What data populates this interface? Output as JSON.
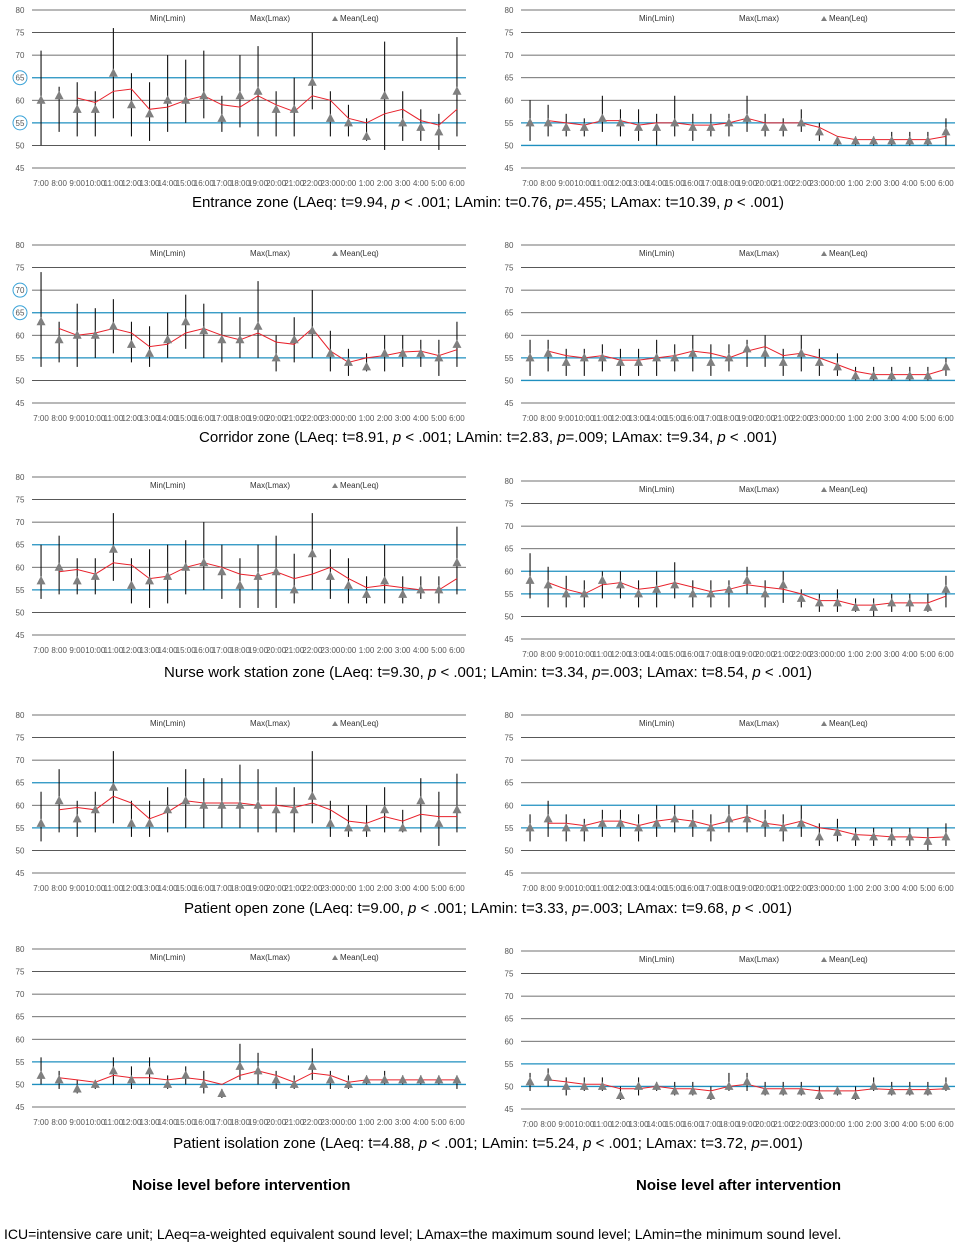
{
  "x_labels": [
    "7:00",
    "8:00",
    "9:00",
    "10:00",
    "11:00",
    "12:00",
    "13:00",
    "14:00",
    "15:00",
    "16:00",
    "17:00",
    "18:00",
    "19:00",
    "20:00",
    "21:00",
    "22:00",
    "23:00",
    "0:00",
    "1:00",
    "2:00",
    "3:00",
    "4:00",
    "5:00",
    "6:00"
  ],
  "legend": {
    "min": "Min(Lmin)",
    "max": "Max(Lmax)",
    "mean": "Mean(Leq)"
  },
  "colors": {
    "ref_line": "#1f8fbf",
    "trend": "#e8212b",
    "marker": "#7f7f7f",
    "grid": "#404040"
  },
  "captions": [
    {
      "zone": "Entrance zone",
      "t1": " (LAeq: t=9.94, ",
      "p1": "p",
      "r1": " < .001; LAmin: t=0.76, ",
      "p2": "p",
      "r2": "=.455; LAmax: t=10.39, ",
      "p3": "p",
      "r3": " < .001)"
    },
    {
      "zone": "Corridor zone",
      "t1": " (LAeq: t=8.91, ",
      "p1": "p",
      "r1": " < .001; LAmin: t=2.83, ",
      "p2": "p",
      "r2": "=.009; LAmax: t=9.34, ",
      "p3": "p",
      "r3": " < .001)"
    },
    {
      "zone": "Nurse work station zone",
      "t1": " (LAeq: t=9.30, ",
      "p1": "p",
      "r1": " < .001; LAmin: t=3.34, ",
      "p2": "p",
      "r2": "=.003; LAmax: t=8.54, ",
      "p3": "p",
      "r3": " < .001)"
    },
    {
      "zone": "Patient open zone",
      "t1": " (LAeq: t=9.00, ",
      "p1": "p",
      "r1": " < .001; LAmin: t=3.33, ",
      "p2": "p",
      "r2": "=.003; LAmax: t=9.68, ",
      "p3": "p",
      "r3": " < .001)"
    },
    {
      "zone": "Patient isolation zone",
      "t1": " (LAeq: t=4.88, ",
      "p1": "p",
      "r1": " < .001; LAmin: t=5.24, ",
      "p2": "p",
      "r2": " < .001; LAmax: t=3.72, ",
      "p3": "p",
      "r3": "=.001)"
    }
  ],
  "before_label": "Noise level before intervention",
  "after_label": "Noise level after intervention",
  "footnote": "ICU=intensive care unit; LAeq=a-weighted equivalent sound level; LAmax=the maximum sound level; LAmin=the minimum sound level.",
  "chart_data": [
    {
      "type": "line",
      "zone": "Entrance zone",
      "period": "before",
      "ylim": [
        45,
        80
      ],
      "yticks": [
        45,
        50,
        55,
        60,
        65,
        70,
        75,
        80
      ],
      "ref_lines": [
        55,
        65
      ],
      "circled_ticks": [
        55,
        65
      ],
      "mean": [
        60,
        61,
        58,
        58,
        66,
        59,
        57,
        60,
        60,
        61,
        56,
        61,
        62,
        58,
        58,
        64,
        56,
        55,
        52,
        61,
        55,
        54,
        53,
        62
      ],
      "min": [
        50,
        53,
        52,
        52,
        56,
        52,
        51,
        53,
        55,
        56,
        53,
        54,
        52,
        52,
        52,
        58,
        52,
        52,
        51,
        49,
        51,
        51,
        49,
        52
      ],
      "max": [
        71,
        63,
        64,
        62,
        76,
        66,
        64,
        70,
        69,
        71,
        61,
        70,
        72,
        62,
        65,
        75,
        62,
        59,
        56,
        73,
        62,
        58,
        57,
        74
      ],
      "trend": [
        null,
        null,
        60.5,
        59.5,
        62,
        62.5,
        58,
        58.5,
        60,
        61,
        59,
        58.5,
        61,
        59,
        57.5,
        61,
        60,
        56,
        55,
        57,
        58,
        55.5,
        54.5,
        58
      ]
    },
    {
      "type": "line",
      "zone": "Entrance zone",
      "period": "after",
      "ylim": [
        45,
        80
      ],
      "yticks": [
        45,
        50,
        55,
        60,
        65,
        70,
        75,
        80
      ],
      "ref_lines": [
        50,
        55
      ],
      "mean": [
        55,
        55,
        54,
        54,
        56,
        55,
        54,
        54,
        55,
        54,
        54,
        55,
        56,
        54,
        54,
        55,
        53,
        51,
        51,
        51,
        51,
        51,
        51,
        53
      ],
      "min": [
        51,
        52,
        52,
        52,
        53,
        52,
        51,
        50,
        52,
        51,
        52,
        52,
        53,
        52,
        52,
        53,
        51,
        50,
        50,
        50,
        50,
        50,
        50,
        50
      ],
      "max": [
        60,
        59,
        57,
        56,
        61,
        58,
        58,
        57,
        61,
        57,
        57,
        57,
        61,
        57,
        56,
        58,
        55,
        52,
        52,
        52,
        53,
        53,
        53,
        56
      ],
      "trend": [
        null,
        55.5,
        55,
        54.5,
        55.5,
        55.5,
        54.5,
        55,
        55,
        54.5,
        54.5,
        55,
        56,
        55,
        55,
        55,
        54,
        52,
        51.3,
        51.3,
        51.3,
        51.3,
        51.3,
        52
      ]
    },
    {
      "type": "line",
      "zone": "Corridor zone",
      "period": "before",
      "ylim": [
        45,
        80
      ],
      "yticks": [
        45,
        50,
        55,
        60,
        65,
        70,
        75,
        80
      ],
      "ref_lines": [
        55,
        65
      ],
      "circled_ticks": [
        65,
        70
      ],
      "mean": [
        63,
        59,
        60,
        60,
        62,
        58,
        56,
        59,
        63,
        61,
        59,
        59,
        62,
        55,
        59,
        61,
        56,
        54,
        53,
        56,
        56,
        56,
        55,
        58
      ],
      "min": [
        53,
        54,
        53,
        55,
        56,
        54,
        53,
        55,
        57,
        55,
        54,
        55,
        55,
        52,
        54,
        55,
        52,
        51,
        52,
        52,
        53,
        53,
        51,
        53
      ],
      "max": [
        74,
        63,
        67,
        66,
        68,
        63,
        62,
        65,
        69,
        67,
        65,
        64,
        72,
        60,
        64,
        70,
        61,
        57,
        56,
        60,
        60,
        59,
        59,
        63
      ],
      "trend": [
        null,
        61.5,
        60,
        60.5,
        61.5,
        60.5,
        57.5,
        58,
        60.5,
        61.5,
        60,
        59,
        60.5,
        58.5,
        58,
        61.5,
        56.5,
        54,
        55,
        55.5,
        56.3,
        56.5,
        55.5,
        56.8
      ]
    },
    {
      "type": "line",
      "zone": "Corridor zone",
      "period": "after",
      "ylim": [
        45,
        80
      ],
      "yticks": [
        45,
        50,
        55,
        60,
        65,
        70,
        75,
        80
      ],
      "ref_lines": [
        50,
        55
      ],
      "mean": [
        55,
        56,
        54,
        55,
        55,
        54,
        54,
        55,
        55,
        56,
        54,
        55,
        57,
        56,
        54,
        56,
        54,
        53,
        51,
        51,
        51,
        51,
        51,
        53
      ],
      "min": [
        51,
        52,
        51,
        51,
        52,
        51,
        51,
        51,
        52,
        52,
        51,
        52,
        53,
        53,
        51,
        52,
        51,
        51,
        50,
        50,
        50,
        50,
        50,
        51
      ],
      "max": [
        59,
        59,
        57,
        57,
        58,
        57,
        57,
        59,
        58,
        60,
        58,
        58,
        59,
        60,
        57,
        60,
        57,
        56,
        53,
        53,
        53,
        53,
        53,
        55
      ],
      "trend": [
        null,
        56.5,
        55.5,
        55,
        55.5,
        54.5,
        54.5,
        55,
        55.5,
        56.5,
        56,
        55,
        56.5,
        57.5,
        55.5,
        56,
        55,
        53.5,
        52,
        51.3,
        51.3,
        51.3,
        51.3,
        52.5
      ]
    },
    {
      "type": "line",
      "zone": "Nurse work station zone",
      "period": "before",
      "ylim": [
        45,
        80
      ],
      "yticks": [
        45,
        50,
        55,
        60,
        65,
        70,
        75,
        80
      ],
      "ref_lines": [
        55,
        65
      ],
      "mean": [
        57,
        60,
        57,
        58,
        64,
        56,
        57,
        58,
        60,
        61,
        59,
        56,
        58,
        59,
        55,
        63,
        58,
        56,
        54,
        57,
        54,
        55,
        55,
        61
      ],
      "min": [
        53,
        54,
        54,
        54,
        57,
        52,
        51,
        52,
        54,
        55,
        53,
        51,
        51,
        51,
        52,
        55,
        53,
        52,
        52,
        52,
        52,
        53,
        52,
        54
      ],
      "max": [
        65,
        67,
        62,
        62,
        72,
        62,
        64,
        65,
        66,
        70,
        65,
        62,
        65,
        67,
        63,
        72,
        64,
        62,
        58,
        65,
        58,
        58,
        58,
        69
      ],
      "trend": [
        null,
        59,
        59.5,
        58.5,
        61,
        60.5,
        57.5,
        58,
        60,
        61,
        60,
        58.5,
        58,
        59,
        57.5,
        58.5,
        60,
        57.5,
        55.5,
        56,
        55.5,
        55,
        55,
        57.5
      ]
    },
    {
      "type": "line",
      "zone": "Nurse work station zone",
      "period": "after",
      "ylim": [
        45,
        80
      ],
      "yticks": [
        45,
        50,
        55,
        60,
        65,
        70,
        75,
        80
      ],
      "ref_lines": [
        55,
        60
      ],
      "mean": [
        58,
        57,
        55,
        55,
        58,
        57,
        55,
        56,
        57,
        55,
        55,
        56,
        58,
        55,
        57,
        54,
        53,
        53,
        52,
        52,
        53,
        53,
        52,
        56
      ],
      "min": [
        54,
        52,
        52,
        52,
        54,
        54,
        52,
        52,
        54,
        52,
        52,
        52,
        55,
        52,
        53,
        52,
        51,
        51,
        51,
        50,
        51,
        51,
        51,
        52
      ],
      "max": [
        64,
        61,
        59,
        58,
        60,
        60,
        58,
        60,
        62,
        58,
        58,
        58,
        61,
        58,
        60,
        56,
        55,
        56,
        54,
        54,
        55,
        55,
        55,
        59
      ],
      "trend": [
        null,
        57.5,
        56,
        55,
        57,
        57.5,
        56,
        56.5,
        57.5,
        56.5,
        55.5,
        56,
        57,
        56.5,
        56,
        55,
        53.5,
        53.5,
        52.5,
        52.5,
        53,
        53,
        53,
        54.5
      ]
    },
    {
      "type": "line",
      "zone": "Patient open zone",
      "period": "before",
      "ylim": [
        45,
        80
      ],
      "yticks": [
        45,
        50,
        55,
        60,
        65,
        70,
        75,
        80
      ],
      "ref_lines": [
        55,
        65
      ],
      "mean": [
        56,
        61,
        57,
        59,
        64,
        56,
        56,
        59,
        61,
        60,
        60,
        60,
        60,
        59,
        59,
        62,
        56,
        55,
        55,
        59,
        55,
        61,
        56,
        59
      ],
      "min": [
        52,
        54,
        53,
        54,
        56,
        53,
        53,
        54,
        55,
        55,
        55,
        55,
        54,
        54,
        54,
        56,
        53,
        53,
        53,
        54,
        54,
        54,
        51,
        54
      ],
      "max": [
        63,
        68,
        61,
        63,
        72,
        61,
        61,
        64,
        68,
        66,
        66,
        69,
        68,
        64,
        64,
        72,
        61,
        60,
        60,
        64,
        59,
        66,
        63,
        67
      ],
      "trend": [
        null,
        59,
        59.5,
        59,
        62,
        60.5,
        57,
        58.5,
        61,
        60.5,
        60.5,
        60.5,
        60,
        60,
        59.5,
        60.5,
        59,
        56.5,
        56,
        57.5,
        56.5,
        58,
        57.5,
        57.5
      ]
    },
    {
      "type": "line",
      "zone": "Patient open zone",
      "period": "after",
      "ylim": [
        45,
        80
      ],
      "yticks": [
        45,
        50,
        55,
        60,
        65,
        70,
        75,
        80
      ],
      "ref_lines": [
        55,
        60
      ],
      "mean": [
        55,
        57,
        55,
        55,
        56,
        56,
        55,
        56,
        57,
        56,
        55,
        57,
        57,
        56,
        55,
        56,
        53,
        54,
        53,
        53,
        53,
        53,
        52,
        53
      ],
      "min": [
        52,
        53,
        52,
        52,
        53,
        53,
        52,
        53,
        54,
        53,
        52,
        54,
        54,
        53,
        52,
        53,
        51,
        52,
        51,
        51,
        51,
        51,
        50,
        51
      ],
      "max": [
        58,
        61,
        58,
        57,
        59,
        59,
        58,
        60,
        60,
        59,
        58,
        60,
        60,
        59,
        58,
        60,
        56,
        57,
        55,
        55,
        55,
        55,
        55,
        56
      ],
      "trend": [
        null,
        56,
        56,
        55.5,
        56.5,
        56.5,
        55.5,
        56.5,
        57,
        56.5,
        55.5,
        56.5,
        57.5,
        56,
        55.5,
        56.5,
        55,
        54.5,
        53.5,
        53.3,
        53,
        53,
        52.8,
        53
      ]
    },
    {
      "type": "line",
      "zone": "Patient isolation zone",
      "period": "before",
      "ylim": [
        45,
        80
      ],
      "yticks": [
        45,
        50,
        55,
        60,
        65,
        70,
        75,
        80
      ],
      "ref_lines": [
        50,
        55
      ],
      "mean": [
        52,
        51,
        49,
        50,
        53,
        51,
        53,
        50,
        52,
        50,
        48,
        54,
        53,
        51,
        50,
        54,
        51,
        50,
        51,
        51,
        51,
        51,
        51,
        51
      ],
      "min": [
        50,
        49,
        48,
        49,
        50,
        49,
        50,
        49,
        50,
        48,
        47,
        51,
        50,
        49,
        49,
        51,
        49,
        49,
        50,
        50,
        50,
        50,
        50,
        49
      ],
      "max": [
        56,
        53,
        51,
        51,
        56,
        54,
        56,
        52,
        54,
        53,
        49,
        59,
        57,
        53,
        52,
        58,
        53,
        52,
        52,
        53,
        52,
        52,
        52,
        52
      ],
      "trend": [
        null,
        51.5,
        51,
        50.5,
        52,
        51.5,
        51.5,
        51,
        51.5,
        51,
        50,
        52,
        53,
        52,
        50.5,
        52.5,
        52,
        50.5,
        51,
        51,
        51,
        51,
        51,
        51
      ]
    },
    {
      "type": "line",
      "zone": "Patient isolation zone",
      "period": "after",
      "ylim": [
        45,
        80
      ],
      "yticks": [
        45,
        50,
        55,
        60,
        65,
        70,
        75,
        80
      ],
      "ref_lines": [
        50,
        55
      ],
      "mean": [
        51,
        52,
        50,
        50,
        50,
        48,
        50,
        50,
        49,
        49,
        48,
        50,
        51,
        49,
        49,
        49,
        48,
        49,
        48,
        50,
        49,
        49,
        49,
        50
      ],
      "min": [
        49,
        50,
        48,
        49,
        49,
        47,
        48,
        49,
        48,
        48,
        47,
        49,
        49,
        48,
        48,
        48,
        47,
        48,
        47,
        49,
        48,
        48,
        48,
        49
      ],
      "max": [
        53,
        54,
        52,
        52,
        52,
        50,
        52,
        51,
        51,
        51,
        50,
        53,
        53,
        51,
        51,
        51,
        50,
        50,
        50,
        52,
        51,
        51,
        51,
        52
      ],
      "trend": [
        null,
        51.5,
        51,
        50.5,
        50.5,
        49.5,
        49.5,
        50,
        49.5,
        49.5,
        49,
        50,
        50.5,
        49.5,
        49.5,
        49.5,
        49,
        49,
        49,
        49.5,
        49.3,
        49.3,
        49.3,
        49.5
      ]
    }
  ]
}
